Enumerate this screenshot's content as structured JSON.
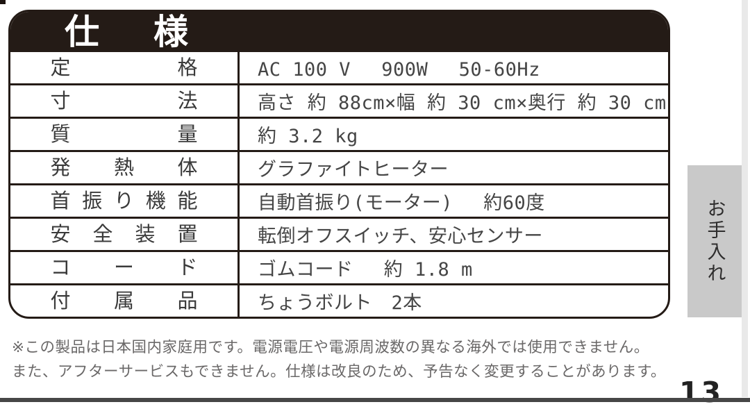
{
  "page": {
    "page_number": "13"
  },
  "spec_table": {
    "title": "仕様",
    "rows": [
      {
        "label": "定格",
        "value": "AC 100 V　 900W　 50-60Hz"
      },
      {
        "label": "寸法",
        "value": "高さ 約 88cm×幅 約 30 cm×奥行 約 30 cm"
      },
      {
        "label": "質量",
        "value": "約 3.2 kg"
      },
      {
        "label": "発熱体",
        "value": "グラファイトヒーター"
      },
      {
        "label": "首振り機能",
        "value": "自動首振り(モーター)　 約60度"
      },
      {
        "label": "安全装置",
        "value": "転倒オフスイッチ、安心センサー"
      },
      {
        "label": "コード",
        "value": "ゴムコード　 約 1.8 m"
      },
      {
        "label": "付属品",
        "value": "ちょうボルト　2本"
      }
    ]
  },
  "side_tab": {
    "label": "お手入れ"
  },
  "notes": {
    "line1": "※この製品は日本国内家庭用です。電源電圧や電源周波数の異なる海外では使用できません。",
    "line2": "また、アフターサービスもできません。仕様は改良のため、予告なく変更することがあります。"
  },
  "colors": {
    "header_bg": "#241b16",
    "border": "#241b16",
    "header_text": "#ffffff",
    "body_text": "#3a3a3a",
    "footnote_text": "#6a6868",
    "side_tab_bg": "#c9c9c9",
    "bottom_bar": "#474747",
    "page_bg": "#ffffff"
  }
}
